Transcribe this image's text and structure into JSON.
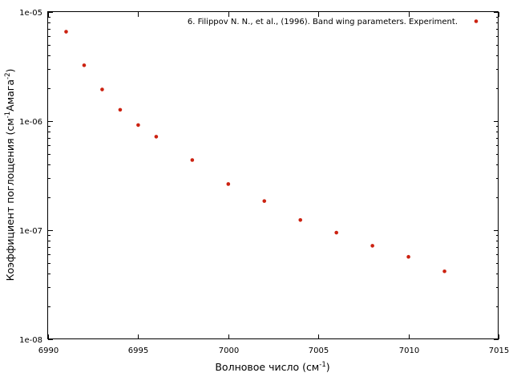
{
  "chart_data": {
    "type": "scatter",
    "title": "",
    "xlabel": {
      "text": "Волновое число (см",
      "sup": "-1",
      "tail": ")"
    },
    "ylabel": {
      "text": "Коэффициент поглощения (см",
      "sup1": "-1",
      "mid": "Амага",
      "sup2": "-2",
      "tail": ")"
    },
    "xlim": [
      6990,
      7015
    ],
    "ylim": [
      1e-08,
      1e-05
    ],
    "yscale": "log",
    "grid": false,
    "legend_position": "top-right",
    "x_ticks": [
      6990,
      6995,
      7000,
      7005,
      7010,
      7015
    ],
    "x_tick_labels": [
      "6990",
      "6995",
      "7000",
      "7005",
      "7010",
      "7015"
    ],
    "y_ticks": [
      1e-08,
      1e-07,
      1e-06,
      1e-05
    ],
    "y_tick_labels": [
      "1e-08",
      "1e-07",
      "1e-06",
      "1e-05"
    ],
    "series": [
      {
        "name": "6. Filippov N. N., et al., (1996). Band wing parameters. Experiment.",
        "color": "#cc2211",
        "marker": "filled-circle",
        "x": [
          6991,
          6992,
          6993,
          6994,
          6995,
          6996,
          6998,
          7000,
          7002,
          7004,
          7006,
          7008,
          7010,
          7012
        ],
        "y": [
          6.6e-06,
          3.25e-06,
          1.95e-06,
          1.27e-06,
          9.2e-07,
          7.2e-07,
          4.4e-07,
          2.65e-07,
          1.85e-07,
          1.24e-07,
          9.5e-08,
          7.2e-08,
          5.7e-08,
          4.2e-08
        ]
      }
    ]
  }
}
